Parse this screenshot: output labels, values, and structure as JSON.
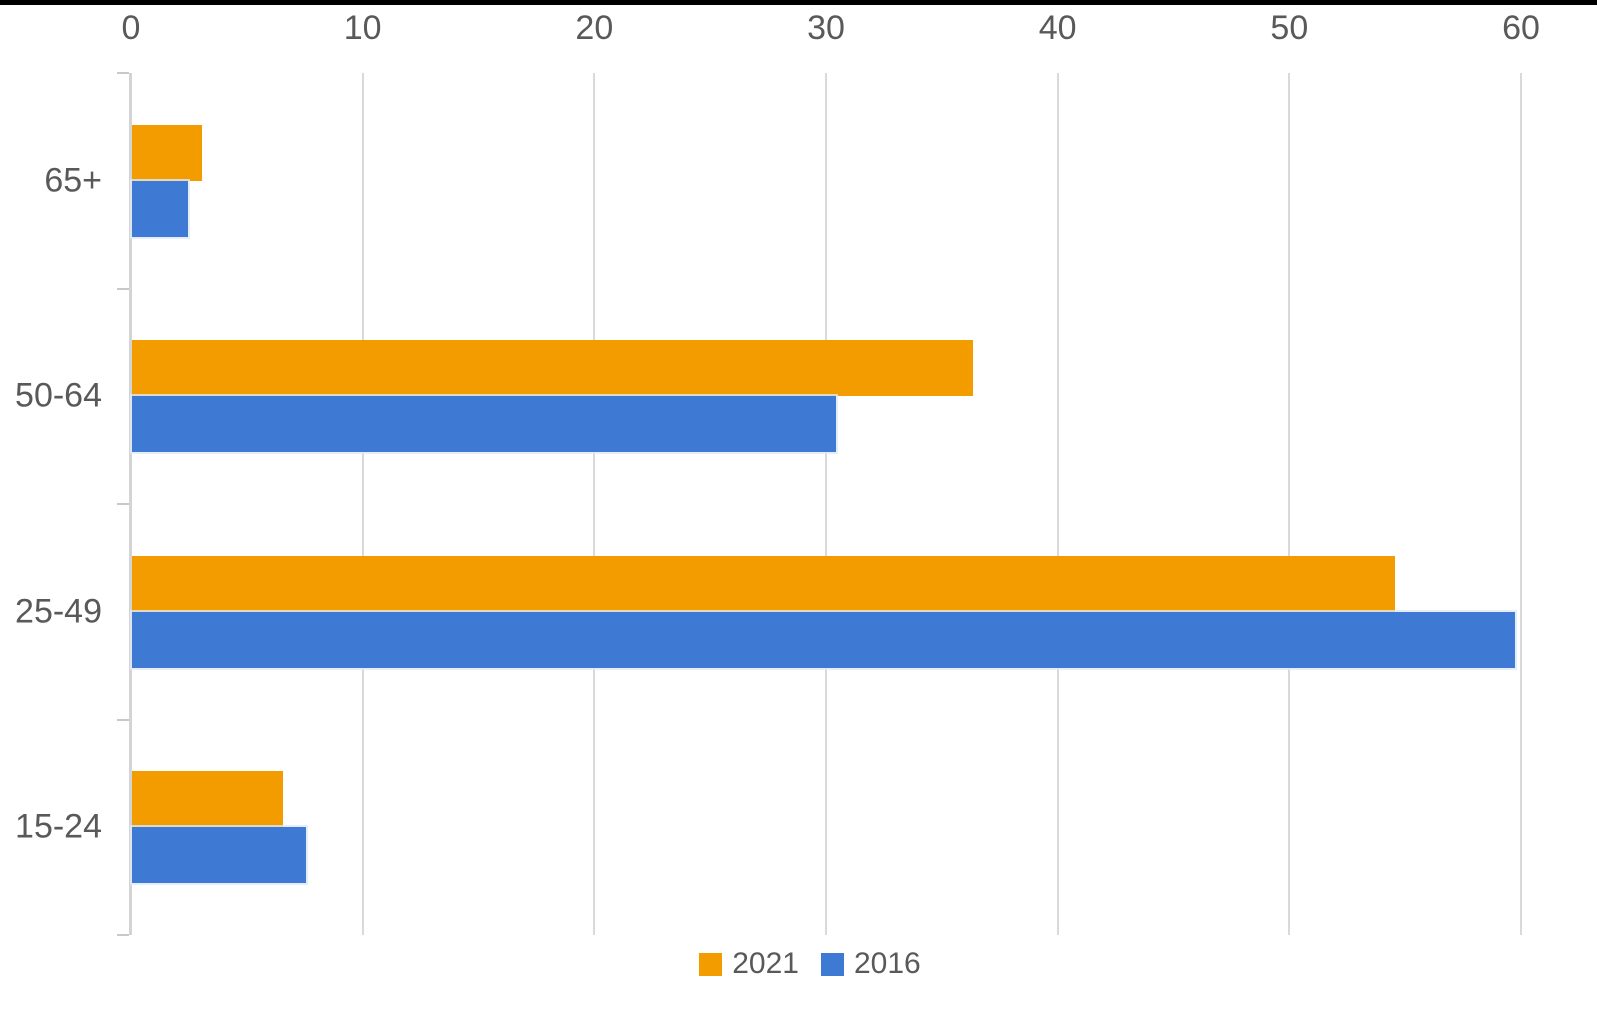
{
  "chart_data": {
    "type": "bar",
    "orientation": "horizontal",
    "title": "",
    "xlabel": "",
    "ylabel": "",
    "categories": [
      "65+",
      "50-64",
      "25-49",
      "15-24"
    ],
    "series": [
      {
        "name": "2021",
        "color": "#F39C00",
        "values": [
          3.0,
          36.3,
          54.5,
          6.5
        ]
      },
      {
        "name": "2016",
        "color": "#3E7AD3",
        "values": [
          2.4,
          30.4,
          59.7,
          7.5
        ]
      }
    ],
    "xlim": [
      0,
      60
    ],
    "x_ticks": [
      "0",
      "10",
      "20",
      "30",
      "40",
      "50",
      "60"
    ],
    "grid": true,
    "legend_position": "bottom"
  },
  "ui": {
    "background_color": "#FFFFFF",
    "top_edge_color": "#000000",
    "gridline_color": "#D9D9D9",
    "axis_line_color": "#D4D4D4",
    "tick_color": "#C9C9C9",
    "axis_text_color": "#595959",
    "legend_text_color": "#595959"
  }
}
